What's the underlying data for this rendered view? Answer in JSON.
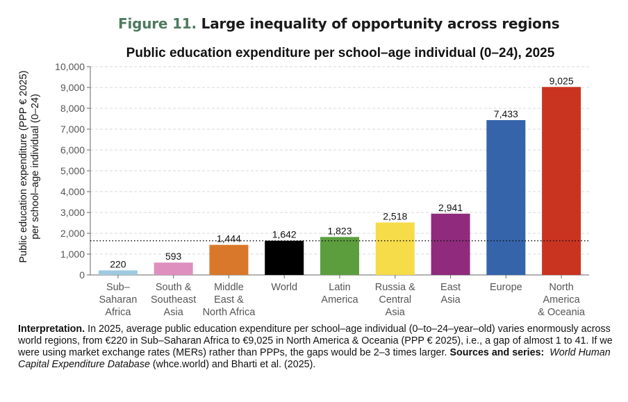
{
  "figure": {
    "number": "Figure 11.",
    "title": "Large inequality of opportunity across regions"
  },
  "note": {
    "interp_label": "Interpretation.",
    "interp_text": " In 2025, average public education expenditure per school–age individual (0–to–24–year–old) varies enormously across world regions, from €220 in Sub–Saharan Africa to €9,025 in North America & Oceania (PPP € 2025), i.e., a gap of almost 1 to 41. If we were using market exchange rates (MERs) rather than PPPs, the gaps would be 2–3 times larger. ",
    "sources_label": "Sources and series:",
    "sources_italic": "World Human Capital Expenditure Database",
    "sources_text": " (whce.world) and Bharti et al. (2025)."
  },
  "chart_data": {
    "type": "bar",
    "title": "Public education expenditure per school–age individual (0–24), 2025",
    "ylabel_lines": [
      "Public education expenditure (PPP € 2025)",
      "per school–age individual (0–24)"
    ],
    "categories": [
      [
        "Sub–",
        "Saharan",
        "Africa"
      ],
      [
        "South &",
        "Southeast",
        "Asia"
      ],
      [
        "Middle",
        "East &",
        "North Africa"
      ],
      [
        "World"
      ],
      [
        "Latin",
        "America"
      ],
      [
        "Russia &",
        "Central",
        "Asia"
      ],
      [
        "East",
        "Asia"
      ],
      [
        "Europe"
      ],
      [
        "North",
        "America",
        "& Oceania"
      ]
    ],
    "values": [
      220,
      593,
      1444,
      1642,
      1823,
      2518,
      2941,
      7433,
      9025
    ],
    "value_labels": [
      "220",
      "593",
      "1,444",
      "1,642",
      "1,823",
      "2,518",
      "2,941",
      "7,433",
      "9,025"
    ],
    "colors": [
      "#9ecae1",
      "#de8fbe",
      "#d9782b",
      "#000000",
      "#5c9e3e",
      "#f5dc48",
      "#8f2a7c",
      "#3564ab",
      "#c93421"
    ],
    "ylim": [
      0,
      10000
    ],
    "yticks": [
      0,
      1000,
      2000,
      3000,
      4000,
      5000,
      6000,
      7000,
      8000,
      9000,
      10000
    ],
    "ytick_labels": [
      "0",
      "1,000",
      "2,000",
      "3,000",
      "4,000",
      "5,000",
      "6,000",
      "7,000",
      "8,000",
      "9,000",
      "10,000"
    ],
    "reference_line": 1642,
    "grid": true
  }
}
